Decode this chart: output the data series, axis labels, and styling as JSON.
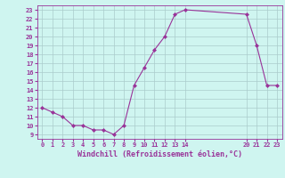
{
  "x": [
    0,
    1,
    2,
    3,
    4,
    5,
    6,
    7,
    8,
    9,
    10,
    11,
    12,
    13,
    14,
    20,
    21,
    22,
    23
  ],
  "y": [
    12,
    11.5,
    11,
    10,
    10,
    9.5,
    9.5,
    9,
    10,
    14.5,
    16.5,
    18.5,
    20,
    22.5,
    23,
    22.5,
    19,
    14.5,
    14.5
  ],
  "line_color": "#993399",
  "marker": "D",
  "marker_size": 2,
  "bg_color": "#cff5f0",
  "grid_color": "#aacccc",
  "xlabel": "Windchill (Refroidissement éolien,°C)",
  "tick_color": "#993399",
  "xlim": [
    -0.5,
    23.5
  ],
  "ylim": [
    8.5,
    23.5
  ],
  "yticks": [
    9,
    10,
    11,
    12,
    13,
    14,
    15,
    16,
    17,
    18,
    19,
    20,
    21,
    22,
    23
  ],
  "xticks": [
    0,
    1,
    2,
    3,
    4,
    5,
    6,
    7,
    8,
    9,
    10,
    11,
    12,
    13,
    14,
    20,
    21,
    22,
    23
  ],
  "xtick_labels": [
    "0",
    "1",
    "2",
    "3",
    "4",
    "5",
    "6",
    "7",
    "8",
    "9",
    "10",
    "11",
    "12",
    "13",
    "14",
    "20",
    "21",
    "22",
    "23"
  ]
}
